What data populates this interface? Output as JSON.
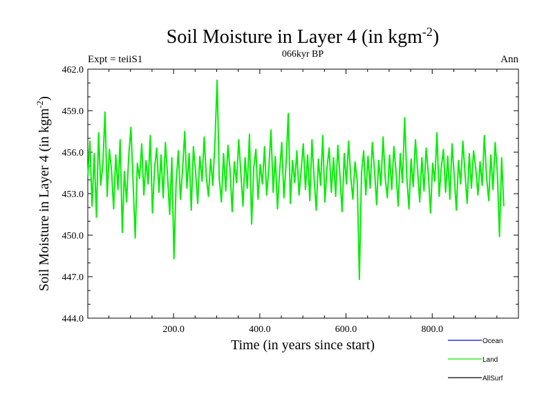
{
  "chart_data": {
    "type": "line",
    "title": "Soil Moisture in Layer 4 (in kgm",
    "title_superscript": "-2",
    "title_suffix": ")",
    "subtitle_left": "Expt = teiiS1",
    "subtitle_center": "066kyr BP",
    "subtitle_right": "Ann",
    "xlabel": "Time (in years since start)",
    "ylabel": "Soil Moisture in Layer 4 (in kgm",
    "ylabel_superscript": "-2",
    "ylabel_suffix": ")",
    "xlim": [
      1,
      1000
    ],
    "ylim": [
      444.0,
      462.0
    ],
    "xticks": [
      200,
      400,
      600,
      800
    ],
    "xtick_labels": [
      "200.0",
      "400.0",
      "600.0",
      "800.0"
    ],
    "yticks": [
      444,
      447,
      450,
      453,
      456,
      459,
      462
    ],
    "ytick_labels": [
      "444.0",
      "447.0",
      "450.0",
      "453.0",
      "456.0",
      "459.0",
      "462.0"
    ],
    "legend_position": "bottom-right",
    "series": [
      {
        "name": "Ocean",
        "color": "#0000ff",
        "values": []
      },
      {
        "name": "Land",
        "color": "#00ee00",
        "x_start": 1,
        "x_step": 5,
        "values": [
          454.2,
          456.8,
          452.1,
          455.9,
          451.3,
          457.4,
          453.6,
          455.1,
          458.9,
          452.8,
          456.2,
          454.7,
          451.9,
          455.8,
          453.3,
          456.9,
          450.2,
          454.6,
          452.4,
          455.7,
          457.8,
          453.9,
          449.8,
          455.2,
          454.1,
          456.6,
          452.9,
          455.4,
          453.7,
          457.2,
          451.6,
          454.9,
          456.3,
          453.1,
          455.8,
          452.7,
          456.7,
          454.3,
          451.5,
          455.6,
          448.3,
          453.8,
          456.1,
          452.6,
          454.8,
          457.5,
          453.4,
          455.9,
          451.8,
          456.4,
          454.6,
          452.3,
          455.7,
          453.9,
          457.1,
          454.2,
          452.8,
          455.5,
          453.6,
          456.8,
          461.2,
          454.1,
          452.4,
          455.9,
          453.2,
          456.5,
          454.7,
          451.7,
          455.3,
          453.8,
          456.9,
          454.5,
          452.1,
          455.6,
          453.4,
          457.3,
          450.8,
          454.9,
          456.2,
          452.6,
          455.1,
          453.7,
          456.4,
          452.9,
          454.8,
          457.6,
          453.1,
          455.7,
          451.9,
          454.6,
          456.7,
          452.7,
          455.2,
          458.8,
          452.3,
          455.4,
          453.8,
          456.1,
          452.9,
          454.7,
          456.6,
          453.3,
          455.8,
          452.5,
          456.9,
          454.1,
          451.8,
          455.5,
          453.6,
          457.2,
          452.4,
          454.9,
          456.3,
          453.1,
          455.6,
          452.8,
          456.5,
          454.3,
          451.7,
          455.9,
          453.7,
          456.8,
          454.2,
          452.6,
          455.3,
          453.9,
          446.8,
          454.5,
          456.1,
          452.9,
          455.7,
          453.4,
          456.7,
          454.8,
          452.2,
          455.4,
          453.6,
          457.1,
          454.1,
          452.7,
          455.8,
          453.3,
          456.4,
          454.6,
          452.1,
          455.9,
          453.8,
          458.5,
          454.2,
          451.9,
          455.5,
          453.5,
          456.9,
          454.7,
          452.4,
          455.6,
          453.2,
          456.3,
          454.4,
          451.6,
          455.2,
          453.9,
          457.4,
          452.8,
          454.9,
          456.2,
          453.1,
          455.7,
          452.6,
          456.6,
          454.3,
          451.8,
          455.4,
          453.7,
          456.8,
          454.5,
          452.3,
          455.9,
          453.4,
          456.1,
          454.8,
          452.9,
          455.3,
          453.6,
          457.2,
          454.2,
          452.5,
          455.8,
          453.3,
          456.7,
          454.6,
          449.9,
          455.6,
          452.1
        ]
      },
      {
        "name": "AllSurf",
        "color": "#000000",
        "values": []
      }
    ]
  }
}
